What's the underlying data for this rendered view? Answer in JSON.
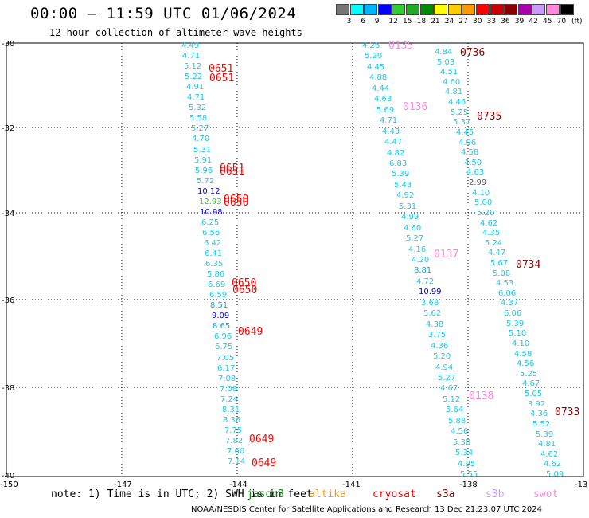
{
  "title": "00:00 — 11:59 UTC 01/06/2024",
  "subtitle": "12 hour collection of altimeter wave heights",
  "colorbar": {
    "labels": [
      "3",
      "6",
      "9",
      "12",
      "15",
      "18",
      "21",
      "24",
      "27",
      "30",
      "33",
      "36",
      "39",
      "42",
      "45",
      "70"
    ],
    "unit": "(ft)",
    "colors": [
      "#777777",
      "#00ffff",
      "#00b4ff",
      "#0000ff",
      "#33cc33",
      "#22aa22",
      "#008800",
      "#ffff00",
      "#ffcc00",
      "#ff9900",
      "#ff0000",
      "#cc0000",
      "#880000",
      "#aa00aa",
      "#cc99ff",
      "#ff88dd",
      "#000000"
    ]
  },
  "lat_labels": [
    "-30",
    "-32",
    "-34",
    "-36",
    "-38",
    "-40"
  ],
  "lon_labels": [
    "-150",
    "-147",
    "-144",
    "-141",
    "-138",
    "-13"
  ],
  "tracks": [
    {
      "time": "0651",
      "color": "#ff0000"
    },
    {
      "time": "0651",
      "color": "#ff0000"
    },
    {
      "time": "0651",
      "color": "#ff0000"
    },
    {
      "time": "0651",
      "color": "#ff0000"
    },
    {
      "time": "0650",
      "color": "#ff0000"
    },
    {
      "time": "0650",
      "color": "#ff0000"
    },
    {
      "time": "0650",
      "color": "#ff0000"
    },
    {
      "time": "0650",
      "color": "#ff0000"
    },
    {
      "time": "0649",
      "color": "#ff0000"
    },
    {
      "time": "0649",
      "color": "#ff0000"
    },
    {
      "time": "0649",
      "color": "#ff0000"
    },
    {
      "time": "0135",
      "color": "#ff88dd"
    },
    {
      "time": "0136",
      "color": "#ff88dd"
    },
    {
      "time": "0137",
      "color": "#ff88dd"
    },
    {
      "time": "0138",
      "color": "#ff88dd"
    },
    {
      "time": "0736",
      "color": "#880000"
    },
    {
      "time": "0735",
      "color": "#880000"
    },
    {
      "time": "0734",
      "color": "#880000"
    },
    {
      "time": "0733",
      "color": "#880000"
    }
  ],
  "track_a_values": [
    "4.49",
    "4.71",
    "5.12",
    "5.22",
    "4.91",
    "4.71",
    "5.32",
    "5.58",
    "5.27",
    "4.70",
    "5.31",
    "5.91",
    "5.96",
    "5.72",
    "10.12",
    "12.93",
    "10.98",
    "6.25",
    "6.56",
    "6.42",
    "6.41",
    "6.35",
    "5.86",
    "6.69",
    "6.59",
    "8.51",
    "9.09",
    "8.65",
    "6.96",
    "6.75",
    "7.05",
    "6.17",
    "7.08",
    "7.08",
    "7.24",
    "8.31",
    "8.36",
    "7.75",
    "7.82",
    "7.60",
    "7.14"
  ],
  "track_b_values": [
    "4.26",
    "5.20",
    "4.45",
    "4.88",
    "4.44",
    "4.63",
    "5.69",
    "4.71",
    "4.43",
    "4.47",
    "4.82",
    "6.83",
    "5.39",
    "5.43",
    "4.92",
    "5.31",
    "4.99",
    "4.60",
    "5.27",
    "4.16",
    "4.20",
    "8.81",
    "4.72",
    "10.99",
    "3.68",
    "5.62",
    "4.38",
    "3.75",
    "4.36",
    "5.20",
    "4.94",
    "5.27",
    "4.67",
    "5.12",
    "5.64",
    "5.88",
    "4.56",
    "5.38",
    "5.34",
    "4.95",
    "5.55"
  ],
  "track_c_values": [
    "4.84",
    "5.03",
    "4.51",
    "4.60",
    "4.81",
    "4.46",
    "5.25",
    "5.37",
    "4.45",
    "4.96",
    "4.58",
    "4.50",
    "4.63",
    "2.99",
    "4.10",
    "5.00",
    "5.20",
    "4.62",
    "4.35",
    "5.24",
    "4.47",
    "5.67",
    "5.08",
    "4.53",
    "6.06",
    "4.37",
    "6.06",
    "5.39",
    "5.10",
    "4.10",
    "4.58",
    "4.56",
    "5.25",
    "4.67",
    "5.05",
    "3.92",
    "4.36",
    "5.52",
    "5.39",
    "4.81",
    "4.62",
    "4.62",
    "5.09"
  ],
  "note": "note: 1) Time is in UTC; 2) SWH is in feet",
  "legend": [
    {
      "label": "jason3",
      "color": "#008800"
    },
    {
      "label": "altika",
      "color": "#ff9900"
    },
    {
      "label": "cryosat",
      "color": "#ff0000"
    },
    {
      "label": "s3a",
      "color": "#880000"
    },
    {
      "label": "s3b",
      "color": "#cc99ff"
    },
    {
      "label": "swot",
      "color": "#ff88dd"
    }
  ],
  "footer": "NOAA/NESDIS Center for Satellite Applications and Research    13 Dec 21:23:07 UTC 2024"
}
